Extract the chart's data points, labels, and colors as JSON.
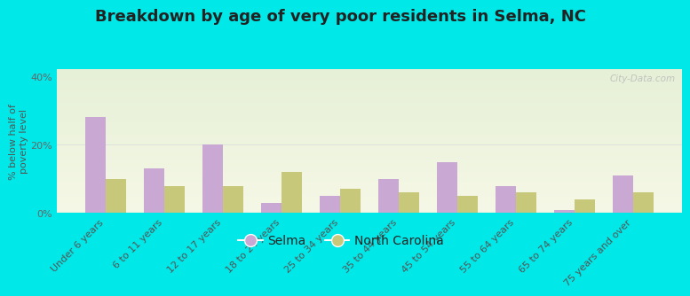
{
  "title": "Breakdown by age of very poor residents in Selma, NC",
  "ylabel": "% below half of\npoverty level",
  "categories": [
    "Under 6 years",
    "6 to 11 years",
    "12 to 17 years",
    "18 to 24 years",
    "25 to 34 years",
    "35 to 44 years",
    "45 to 54 years",
    "55 to 64 years",
    "65 to 74 years",
    "75 years and over"
  ],
  "selma_values": [
    28,
    13,
    20,
    3,
    5,
    10,
    15,
    8,
    1,
    11
  ],
  "nc_values": [
    10,
    8,
    8,
    12,
    7,
    6,
    5,
    6,
    4,
    6
  ],
  "selma_color": "#c9a8d4",
  "nc_color": "#c8c87a",
  "background_outer": "#00e8e8",
  "ylim": [
    0,
    42
  ],
  "yticks": [
    0,
    20,
    40
  ],
  "ytick_labels": [
    "0%",
    "20%",
    "40%"
  ],
  "bar_width": 0.35,
  "title_fontsize": 13,
  "axis_label_fontsize": 8,
  "tick_label_fontsize": 8,
  "legend_fontsize": 10,
  "watermark": "City-Data.com"
}
